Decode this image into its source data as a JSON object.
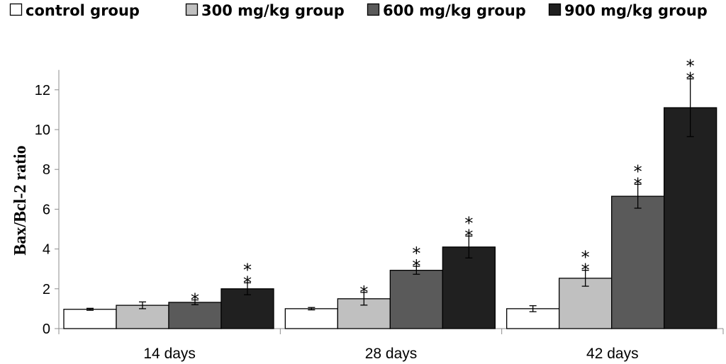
{
  "chart_data": {
    "type": "bar",
    "title": "",
    "xlabel": "",
    "ylabel": "Bax/Bcl-2 ratio",
    "ylim": [
      0,
      13
    ],
    "yticks": [
      0,
      2,
      4,
      6,
      8,
      10,
      12
    ],
    "grid": false,
    "legend": "top",
    "categories": [
      "14 days",
      "28 days",
      "42 days"
    ],
    "series": [
      {
        "name": "control group",
        "color": "#ffffff",
        "values": [
          0.97,
          1.0,
          1.0
        ],
        "errors": [
          0.05,
          0.06,
          0.15
        ],
        "significance": [
          "",
          "",
          ""
        ]
      },
      {
        "name": "300 mg/kg group",
        "color": "#c0c0c0",
        "values": [
          1.17,
          1.5,
          2.53
        ],
        "errors": [
          0.17,
          0.32,
          0.4
        ],
        "significance": [
          "",
          "*",
          "**"
        ]
      },
      {
        "name": "600 mg/kg group",
        "color": "#5a5a5a",
        "values": [
          1.32,
          2.93,
          6.65
        ],
        "errors": [
          0.12,
          0.2,
          0.6
        ],
        "significance": [
          "*",
          "**",
          "**"
        ]
      },
      {
        "name": "900 mg/kg group",
        "color": "#202020",
        "values": [
          2.0,
          4.1,
          11.1
        ],
        "errors": [
          0.3,
          0.55,
          1.45
        ],
        "significance": [
          "**",
          "**",
          "**"
        ]
      }
    ]
  }
}
